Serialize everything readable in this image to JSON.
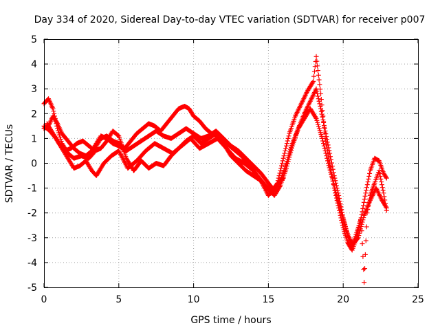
{
  "chart_data": {
    "type": "scatter",
    "title": "Day 334 of 2020, Sidereal Day-to-day VTEC variation (SDTVAR) for receiver p007",
    "xlabel": "GPS time / hours",
    "ylabel": "SDTVAR / TECUs",
    "xlim": [
      0,
      25
    ],
    "ylim": [
      -5,
      5
    ],
    "x_ticks": [
      0,
      5,
      10,
      15,
      20,
      25
    ],
    "y_ticks": [
      -5,
      -4,
      -3,
      -2,
      -1,
      0,
      1,
      2,
      3,
      4,
      5
    ],
    "grid": true,
    "marker": "+",
    "color": "#ff0000",
    "series": [
      {
        "name": "trace-1",
        "x": [
          0.0,
          0.3,
          0.6,
          0.9,
          1.2,
          1.6,
          2.0,
          2.5,
          3.0,
          3.3,
          3.5,
          3.8,
          4.2,
          4.6,
          5.0,
          5.4,
          5.8,
          6.2,
          6.6,
          7.0,
          7.4,
          7.8,
          8.2,
          8.6,
          9.0,
          9.4,
          9.7,
          10.0,
          10.4,
          10.8,
          11.2,
          11.6,
          12.0,
          12.4,
          12.8,
          13.2,
          13.6,
          14.0,
          14.4,
          14.8,
          15.2,
          15.6,
          16.0,
          16.4,
          16.8,
          17.2,
          17.6,
          18.0,
          18.2,
          18.5,
          18.8,
          19.1,
          19.4,
          19.7,
          20.0,
          20.3,
          20.6,
          20.9,
          21.2,
          21.5,
          21.8,
          22.1,
          22.4,
          22.7,
          22.9
        ],
        "y": [
          2.4,
          2.6,
          2.2,
          1.4,
          0.8,
          0.4,
          0.2,
          0.3,
          0.2,
          0.4,
          0.7,
          1.0,
          1.1,
          0.9,
          0.8,
          0.6,
          0.9,
          1.2,
          1.4,
          1.6,
          1.5,
          1.3,
          1.6,
          1.9,
          2.2,
          2.3,
          2.2,
          1.9,
          1.7,
          1.4,
          1.2,
          1.1,
          0.9,
          0.7,
          0.5,
          0.3,
          0.0,
          -0.3,
          -0.6,
          -0.9,
          -1.2,
          -0.8,
          0.2,
          1.2,
          1.9,
          2.4,
          2.9,
          3.3,
          4.3,
          2.8,
          1.0,
          0.0,
          -1.0,
          -1.8,
          -2.6,
          -3.2,
          -3.5,
          -3.0,
          -2.2,
          -1.2,
          -0.3,
          0.2,
          0.1,
          -0.4,
          -0.6
        ]
      },
      {
        "name": "trace-2",
        "x": [
          0.0,
          0.3,
          0.6,
          0.9,
          1.2,
          1.6,
          2.0,
          2.4,
          2.8,
          3.2,
          3.5,
          3.8,
          4.2,
          4.6,
          5.0,
          5.5,
          6.0,
          6.5,
          7.0,
          7.5,
          8.0,
          8.5,
          9.0,
          9.5,
          10.0,
          10.5,
          11.0,
          11.5,
          12.0,
          12.5,
          13.0,
          13.5,
          14.0,
          14.5,
          15.0,
          15.4,
          15.8,
          16.2,
          16.6,
          17.0,
          17.4,
          17.8,
          18.2,
          18.5,
          18.8,
          19.1,
          19.4,
          19.7,
          20.0,
          20.3,
          20.6,
          20.9,
          21.2,
          21.4,
          21.6,
          21.8,
          22.1,
          22.4,
          22.7,
          22.9
        ],
        "y": [
          1.4,
          1.5,
          1.9,
          1.6,
          1.2,
          0.9,
          0.6,
          0.4,
          0.3,
          0.5,
          0.8,
          1.1,
          1.0,
          0.8,
          0.7,
          0.5,
          0.7,
          0.9,
          1.1,
          1.3,
          1.1,
          1.0,
          1.2,
          1.4,
          1.2,
          1.0,
          1.1,
          1.3,
          1.0,
          0.7,
          0.5,
          0.2,
          -0.1,
          -0.4,
          -0.8,
          -1.1,
          -0.7,
          0.0,
          0.8,
          1.4,
          2.0,
          2.5,
          3.0,
          2.2,
          1.3,
          0.4,
          -0.5,
          -1.3,
          -2.2,
          -2.9,
          -3.3,
          -2.8,
          -2.2,
          -4.8,
          -2.0,
          -1.3,
          -0.8,
          -0.3,
          -1.2,
          -1.9
        ]
      },
      {
        "name": "trace-3",
        "x": [
          0.0,
          0.4,
          0.8,
          1.2,
          1.6,
          2.0,
          2.4,
          2.8,
          3.2,
          3.5,
          4.0,
          4.5,
          5.0,
          5.6,
          6.2,
          6.8,
          7.4,
          8.0,
          8.6,
          9.2,
          9.8,
          10.4,
          11.0,
          11.6,
          12.2,
          12.8,
          13.4,
          14.0,
          14.6,
          15.0,
          15.4,
          15.8,
          16.2,
          16.6,
          17.0,
          17.4,
          17.8,
          18.2,
          18.6,
          19.0,
          19.4,
          19.8,
          20.2,
          20.6,
          21.0,
          21.4,
          21.8,
          22.2,
          22.6,
          22.9
        ],
        "y": [
          1.5,
          1.3,
          1.0,
          0.6,
          0.2,
          -0.2,
          -0.1,
          0.1,
          -0.3,
          -0.5,
          0.0,
          0.3,
          0.5,
          -0.2,
          0.1,
          0.5,
          0.8,
          0.6,
          0.4,
          0.7,
          1.0,
          0.6,
          0.8,
          1.0,
          0.6,
          0.2,
          0.0,
          -0.3,
          -0.8,
          -1.0,
          -1.3,
          -0.9,
          -0.2,
          0.7,
          1.4,
          1.8,
          2.2,
          1.8,
          1.0,
          0.0,
          -0.9,
          -1.8,
          -2.7,
          -3.3,
          -3.0,
          -2.1,
          -1.5,
          -1.0,
          -1.5,
          -1.8
        ]
      },
      {
        "name": "trace-4",
        "x": [
          0.2,
          0.6,
          1.0,
          1.4,
          1.8,
          2.2,
          2.6,
          3.0,
          3.4,
          3.8,
          4.2,
          4.6,
          5.0,
          5.5,
          6.0,
          6.5,
          7.0,
          7.5,
          8.0,
          8.5,
          9.0,
          9.5,
          10.0,
          10.5,
          11.0,
          11.5,
          12.0,
          12.5,
          13.0,
          13.5,
          14.0,
          14.5,
          15.0,
          15.5,
          16.0
        ],
        "y": [
          1.6,
          1.2,
          0.8,
          0.5,
          0.6,
          0.8,
          0.9,
          0.7,
          0.5,
          0.6,
          0.9,
          1.3,
          1.1,
          0.2,
          -0.3,
          0.1,
          -0.2,
          0.0,
          -0.1,
          0.3,
          0.6,
          0.9,
          1.1,
          0.8,
          1.0,
          1.2,
          0.8,
          0.3,
          0.0,
          -0.3,
          -0.5,
          -0.7,
          -1.3,
          -0.9,
          -0.6
        ]
      }
    ]
  }
}
